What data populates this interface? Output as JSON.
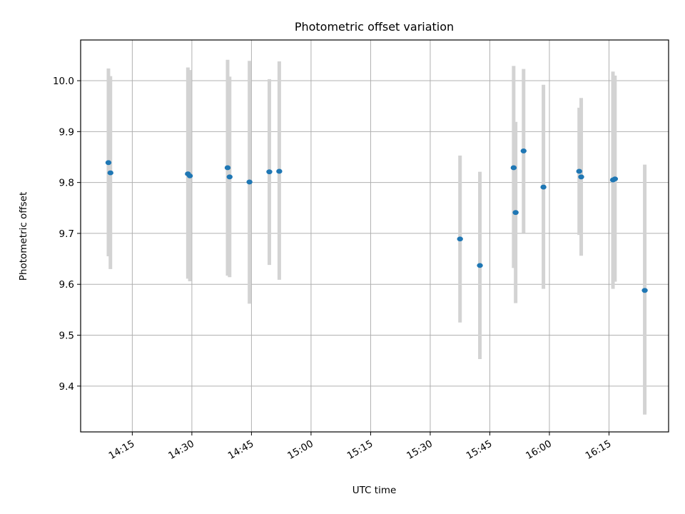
{
  "chart_data": {
    "type": "scatter",
    "title": "Photometric offset variation",
    "xlabel": "UTC time",
    "ylabel": "Photometric offset",
    "x_ticks": [
      "14:15",
      "14:30",
      "14:45",
      "15:00",
      "15:15",
      "15:30",
      "15:45",
      "16:00",
      "16:15"
    ],
    "y_ticks": [
      "9.4",
      "9.5",
      "9.6",
      "9.7",
      "9.8",
      "9.9",
      "10.0"
    ],
    "xlim": [
      "14:02",
      "16:30"
    ],
    "ylim": [
      9.31,
      10.08
    ],
    "grid": true,
    "colors": {
      "point": "#1f77b4",
      "errorbar": "#d3d3d3",
      "grid": "#b0b0b0"
    },
    "points": [
      {
        "x": "14:09",
        "y": 9.839,
        "y_low": 9.655,
        "y_high": 10.024
      },
      {
        "x": "14:09:30",
        "y": 9.819,
        "y_low": 9.63,
        "y_high": 10.009
      },
      {
        "x": "14:29",
        "y": 9.817,
        "y_low": 9.611,
        "y_high": 10.026
      },
      {
        "x": "14:29:30",
        "y": 9.813,
        "y_low": 9.606,
        "y_high": 10.021
      },
      {
        "x": "14:39",
        "y": 9.829,
        "y_low": 9.617,
        "y_high": 10.041
      },
      {
        "x": "14:39:30",
        "y": 9.811,
        "y_low": 9.614,
        "y_high": 10.008
      },
      {
        "x": "14:44:30",
        "y": 9.801,
        "y_low": 9.562,
        "y_high": 10.039
      },
      {
        "x": "14:49:30",
        "y": 9.821,
        "y_low": 9.638,
        "y_high": 10.003
      },
      {
        "x": "14:52",
        "y": 9.822,
        "y_low": 9.609,
        "y_high": 10.038
      },
      {
        "x": "15:37:30",
        "y": 9.689,
        "y_low": 9.525,
        "y_high": 9.853
      },
      {
        "x": "15:42:30",
        "y": 9.637,
        "y_low": 9.453,
        "y_high": 9.821
      },
      {
        "x": "15:51",
        "y": 9.829,
        "y_low": 9.632,
        "y_high": 10.029
      },
      {
        "x": "15:51:30",
        "y": 9.741,
        "y_low": 9.563,
        "y_high": 9.919
      },
      {
        "x": "15:53:30",
        "y": 9.862,
        "y_low": 9.701,
        "y_high": 10.023
      },
      {
        "x": "15:58:30",
        "y": 9.791,
        "y_low": 9.591,
        "y_high": 9.992
      },
      {
        "x": "16:07:30",
        "y": 9.822,
        "y_low": 9.697,
        "y_high": 9.947
      },
      {
        "x": "16:08",
        "y": 9.811,
        "y_low": 9.656,
        "y_high": 9.966
      },
      {
        "x": "16:16",
        "y": 9.805,
        "y_low": 9.591,
        "y_high": 10.018
      },
      {
        "x": "16:16:30",
        "y": 9.807,
        "y_low": 9.605,
        "y_high": 10.01
      },
      {
        "x": "16:24",
        "y": 9.588,
        "y_low": 9.344,
        "y_high": 9.835
      }
    ]
  }
}
